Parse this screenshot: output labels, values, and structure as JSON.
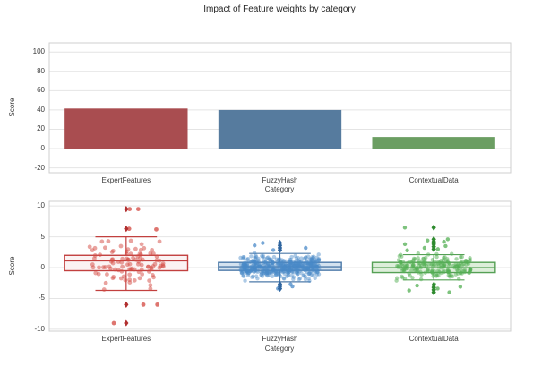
{
  "title": "Impact of Feature weights by category",
  "style": {
    "background": "#ffffff",
    "grid_color": "#e4e4e4",
    "frame_color": "#cfcfcf",
    "text_color": "#3b3b3b",
    "title_color": "#262626"
  },
  "chart_data": [
    {
      "type": "bar",
      "title": "",
      "categories": [
        "ExpertFeatures",
        "FuzzyHash",
        "ContextualData"
      ],
      "values": [
        41.5,
        40,
        12
      ],
      "bar_colors": [
        "#a94d50",
        "#567b9e",
        "#6b9e62"
      ],
      "xlabel": "Category",
      "ylabel": "Score",
      "yticks": [
        100,
        80,
        60,
        40,
        20,
        0,
        -20
      ],
      "ylim": [
        -25,
        109.5
      ],
      "grid": "horizontal",
      "legend": "none"
    },
    {
      "type": "box+strip",
      "title": "",
      "categories": [
        "ExpertFeatures",
        "FuzzyHash",
        "ContextualData"
      ],
      "xlabel": "Category",
      "ylabel": "Score",
      "yticks": [
        10,
        5,
        0,
        -5,
        -10
      ],
      "ylim": [
        -10.3,
        10.75
      ],
      "grid": "horizontal",
      "legend": "none",
      "series": [
        {
          "name": "ExpertFeatures",
          "box": {
            "whisker_low": -3.7,
            "q1": -0.5,
            "median": 1.1,
            "q3": 2.0,
            "whisker_high": 5.0
          },
          "fliers": [
            9.5,
            6.3,
            -6.0,
            -9.0
          ],
          "outlier_points": [
            9.5,
            9.5,
            6.3,
            6.2,
            -6.0,
            -6.0,
            -9.0
          ],
          "n_points": 100,
          "point_mean": 0.55,
          "point_sigma": 1.85,
          "point_clamp": [
            -4.1,
            5.05
          ],
          "color_point": "#d3473f",
          "color_edge": "#c2403f",
          "color_flier": "#b12f2f",
          "color_fill": "#fbf3f3"
        },
        {
          "name": "FuzzyHash",
          "box": {
            "whisker_low": -2.3,
            "q1": -0.45,
            "median": 0.15,
            "q3": 0.85,
            "whisker_high": 2.3
          },
          "fliers": [
            4.0,
            3.6,
            3.2,
            2.85,
            -2.7,
            -3.05,
            -3.4
          ],
          "outlier_points": [
            4.0,
            3.6,
            3.2,
            2.85,
            -2.7,
            -3.05,
            -3.4
          ],
          "n_points": 480,
          "point_mean": 0.05,
          "point_sigma": 0.85,
          "point_clamp": [
            -2.45,
            2.45
          ],
          "color_point": "#4a89c8",
          "color_edge": "#4d7aa9",
          "color_flier": "#2f659f",
          "color_fill": "#d4e2ef"
        },
        {
          "name": "ContextualData",
          "box": {
            "whisker_low": -2.0,
            "q1": -0.8,
            "median": 0.0,
            "q3": 0.85,
            "whisker_high": 2.1
          },
          "fliers": [
            6.5,
            4.6,
            4.2,
            3.8,
            3.4,
            3.0,
            -2.8,
            -3.2,
            -3.6,
            -4.0
          ],
          "outlier_points": [
            6.5,
            4.6,
            4.4,
            4.2,
            3.8,
            3.5,
            3.2,
            3.0,
            2.8,
            -2.7,
            -2.9,
            -3.1,
            -3.4,
            -3.7,
            -4.0
          ],
          "n_points": 190,
          "point_mean": 0.0,
          "point_sigma": 1.05,
          "point_clamp": [
            -2.55,
            2.55
          ],
          "color_point": "#53af53",
          "color_edge": "#55a055",
          "color_flier": "#2f8b2f",
          "color_fill": "#ddeeda"
        }
      ]
    }
  ]
}
